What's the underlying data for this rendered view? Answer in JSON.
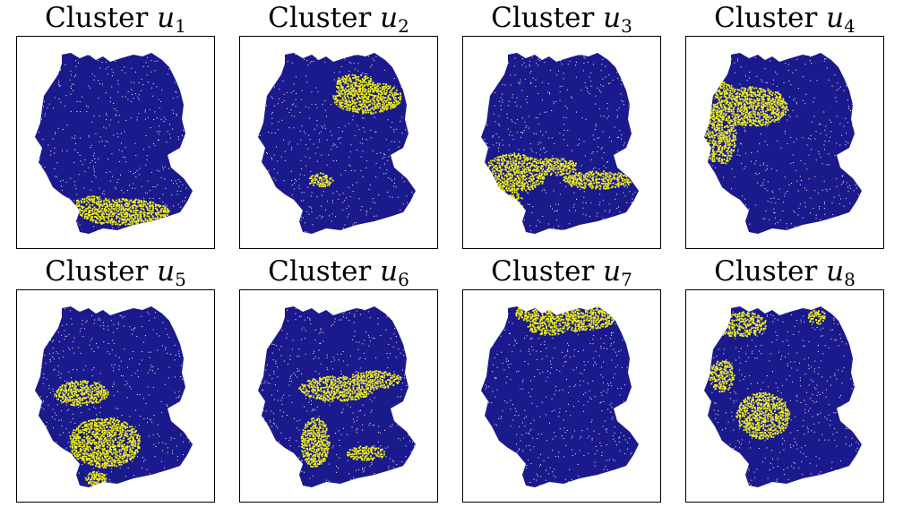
{
  "colors": {
    "background_points": "#1a1a8c",
    "cluster_points": "#f2f21a",
    "frame": "#000000"
  },
  "panels": [
    {
      "title_prefix": "Cluster",
      "symbol": "u",
      "subscript": "1"
    },
    {
      "title_prefix": "Cluster",
      "symbol": "u",
      "subscript": "2"
    },
    {
      "title_prefix": "Cluster",
      "symbol": "u",
      "subscript": "3"
    },
    {
      "title_prefix": "Cluster",
      "symbol": "u",
      "subscript": "4"
    },
    {
      "title_prefix": "Cluster",
      "symbol": "u",
      "subscript": "5"
    },
    {
      "title_prefix": "Cluster",
      "symbol": "u",
      "subscript": "6"
    },
    {
      "title_prefix": "Cluster",
      "symbol": "u",
      "subscript": "7"
    },
    {
      "title_prefix": "Cluster",
      "symbol": "u",
      "subscript": "8"
    }
  ],
  "chart_data": [
    {
      "type": "scatter",
      "title": "Cluster u1",
      "grid": false,
      "highlighted_region": "south (Alpine foothills)"
    },
    {
      "type": "scatter",
      "title": "Cluster u2",
      "grid": false,
      "highlighted_region": "north-east"
    },
    {
      "type": "scatter",
      "title": "Cluster u3",
      "grid": false,
      "highlighted_region": "south-west and centre band"
    },
    {
      "type": "scatter",
      "title": "Cluster u4",
      "grid": false,
      "highlighted_region": "north-west"
    },
    {
      "type": "scatter",
      "title": "Cluster u5",
      "grid": false,
      "highlighted_region": "south-west highlands"
    },
    {
      "type": "scatter",
      "title": "Cluster u6",
      "grid": false,
      "highlighted_region": "central uplands"
    },
    {
      "type": "scatter",
      "title": "Cluster u7",
      "grid": false,
      "highlighted_region": "far north coast"
    },
    {
      "type": "scatter",
      "title": "Cluster u8",
      "grid": false,
      "highlighted_region": "north-west coast and central-west"
    }
  ]
}
